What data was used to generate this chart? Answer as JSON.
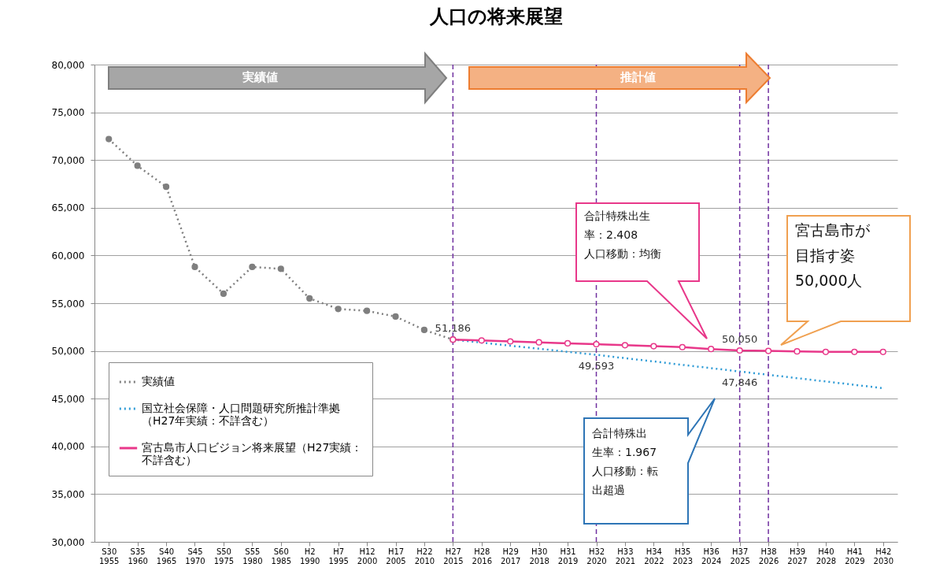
{
  "chart_data": {
    "type": "line",
    "title": "人口の将来展望",
    "categories": [
      "S30\n1955",
      "S35\n1960",
      "S40\n1965",
      "S45\n1970",
      "S50\n1975",
      "S55\n1980",
      "S60\n1985",
      "H2\n1990",
      "H7\n1995",
      "H12\n2000",
      "H17\n2005",
      "H22\n2010",
      "H27\n2015",
      "H28\n2016",
      "H29\n2017",
      "H30\n2018",
      "H31\n2019",
      "H32\n2020",
      "H33\n2021",
      "H34\n2022",
      "H35\n2023",
      "H36\n2024",
      "H37\n2025",
      "H38\n2026",
      "H39\n2027",
      "H40\n2028",
      "H41\n2029",
      "H42\n2030"
    ],
    "series": [
      {
        "name": "実績値",
        "color": "#7f7f7f",
        "marker": "circle",
        "line_style": "dotted",
        "values": [
          72200,
          69400,
          67200,
          58800,
          56000,
          58800,
          58600,
          55500,
          54400,
          54200,
          53600,
          52200,
          51186,
          null,
          null,
          null,
          null,
          null,
          null,
          null,
          null,
          null,
          null,
          null,
          null,
          null,
          null,
          null
        ]
      },
      {
        "name": "国立社会保障・人口問題研究所推計準拠（H27年実績：不詳含む）",
        "color": "#2e9bd6",
        "marker": "none",
        "line_style": "dotted",
        "values": [
          null,
          null,
          null,
          null,
          null,
          null,
          null,
          null,
          null,
          null,
          null,
          null,
          51186,
          50870,
          50550,
          50230,
          49910,
          49593,
          49240,
          48900,
          48540,
          48200,
          47846,
          47500,
          47150,
          46800,
          46450,
          46100
        ],
        "value_labels": [
          null,
          null,
          null,
          null,
          null,
          null,
          null,
          null,
          null,
          null,
          null,
          null,
          null,
          null,
          null,
          null,
          null,
          "49,593",
          null,
          null,
          null,
          null,
          "47,846",
          null,
          null,
          null,
          null,
          null
        ]
      },
      {
        "name": "宮古島市人口ビジョン将来展望（H27実績：不詳含む）",
        "color": "#e8388a",
        "marker": "circle",
        "line_style": "solid",
        "values": [
          null,
          null,
          null,
          null,
          null,
          null,
          null,
          null,
          null,
          null,
          null,
          null,
          51186,
          51100,
          51000,
          50900,
          50800,
          50700,
          50600,
          50500,
          50400,
          50200,
          50050,
          50000,
          49950,
          49900,
          49900,
          49900
        ],
        "value_labels": [
          null,
          null,
          null,
          null,
          null,
          null,
          null,
          null,
          null,
          null,
          null,
          null,
          "51,186",
          null,
          null,
          null,
          null,
          null,
          null,
          null,
          null,
          null,
          "50,050",
          null,
          null,
          null,
          null,
          null
        ]
      }
    ],
    "ylim": [
      30000,
      80000
    ],
    "yticks": [
      {
        "value": 30000,
        "label": "30,000"
      },
      {
        "value": 35000,
        "label": "35,000"
      },
      {
        "value": 40000,
        "label": "40,000"
      },
      {
        "value": 45000,
        "label": "45,000"
      },
      {
        "value": 50000,
        "label": "50,000"
      },
      {
        "value": 55000,
        "label": "55,000"
      },
      {
        "value": 60000,
        "label": "60,000"
      },
      {
        "value": 65000,
        "label": "65,000"
      },
      {
        "value": 70000,
        "label": "70,000"
      },
      {
        "value": 75000,
        "label": "75,000"
      },
      {
        "value": 80000,
        "label": "80,000"
      }
    ],
    "grid": "y",
    "legend": "left",
    "ref_lines": [
      {
        "axis": "x",
        "value": "H27\n2015",
        "label": null,
        "color": "#7030a0",
        "line_style": "dashed"
      },
      {
        "axis": "x",
        "value": "H32\n2020",
        "label": null,
        "color": "#7030a0",
        "line_style": "dashed"
      },
      {
        "axis": "x",
        "value": "H37\n2025",
        "label": null,
        "color": "#7030a0",
        "line_style": "dashed"
      },
      {
        "axis": "x",
        "value": "H38\n2026",
        "label": null,
        "color": "#7030a0",
        "line_style": "dashed"
      }
    ],
    "annotations": [
      "実績値",
      "推計値",
      "合計特殊出生率：2.408人口移動：均衡",
      "合計特殊出生率：1.967人口移動：転出超過",
      "宮古島市が目指す姿50,000人"
    ]
  }
}
